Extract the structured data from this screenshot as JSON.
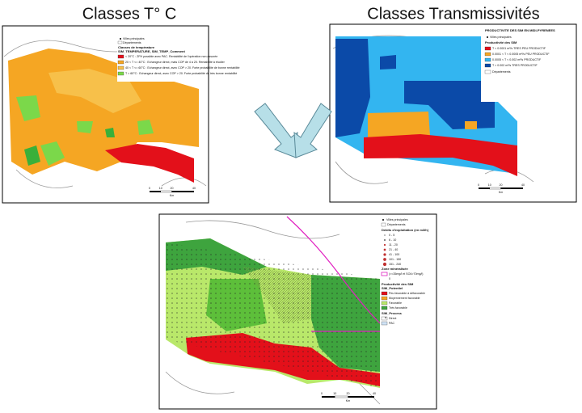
{
  "headings": {
    "left": "Classes T° C",
    "right": "Classes Transmissivités"
  },
  "temperature_map": {
    "legend": {
      "cities": "Villes principales",
      "departments": "Départements",
      "title": "Classes de température",
      "subtitle": "SIM_TEMPERATURE, SIM_TEMP_Comment",
      "items": [
        "< 20°C : ZFH possible avec PAC. Rentabilité de l'opération non assurée",
        "20 < T <= 40°C : Echangeur direct, mais COP de 4 à 20. Rentabilité à étudier",
        "40 < T <= 60°C : Echangeur direct, avec COP > 20. Forte probabilité de bonne rentabilité",
        "T > 60°C : Echangeur direct, avec COP > 20. Forte probabilité de très bonne rentabilité"
      ]
    },
    "scale": [
      "0",
      "10",
      "20",
      "40",
      "Km"
    ]
  },
  "transmissivity_map": {
    "legend": {
      "title": "PRODUCTIVITE DES SIM EN MIDI-PYRENEES",
      "cities": "Villes principales",
      "subtitle": "Productivité des SIM",
      "items": [
        "T < 0.0001 m²/s TRES PEU PRODUCTIF",
        "0.0001 < T < 0.0005 m²/s PEU PRODUCTIF",
        "0.0005 < T < 0.002 m²/s PRODUCTIF",
        "T > 0.002 m²/s TRES PRODUCTIF"
      ],
      "departments": "Départements"
    },
    "scale": [
      "0",
      "10",
      "20",
      "40",
      "Km"
    ]
  },
  "potential_map": {
    "legend": {
      "cities": "Villes principales",
      "departments": "Départements",
      "flow_title": "Debits d'exploitation (en m3/h)",
      "flows": [
        "0 - 5",
        "6 - 10",
        "11 - 20",
        "21 - 40",
        "41 - 100",
        "101 - 150",
        "151 - 240"
      ],
      "zone_title": "Zone minéralisée",
      "zone_item": "(>=35mg/l et SO4>70mg/l)",
      "zone_value": "0",
      "potential_title": "Productivité des SIM",
      "potential_subtitle": "SIM_Potentiel",
      "potential_items": [
        "Peu favorable à défavorable",
        "Moyennement favorable",
        "Favorable",
        "Très favorable"
      ],
      "process_title": "SIM_Process",
      "process_items": [
        "Direct",
        "PAC"
      ]
    },
    "scale": [
      "0",
      "10",
      "20",
      "40",
      "Km"
    ]
  }
}
